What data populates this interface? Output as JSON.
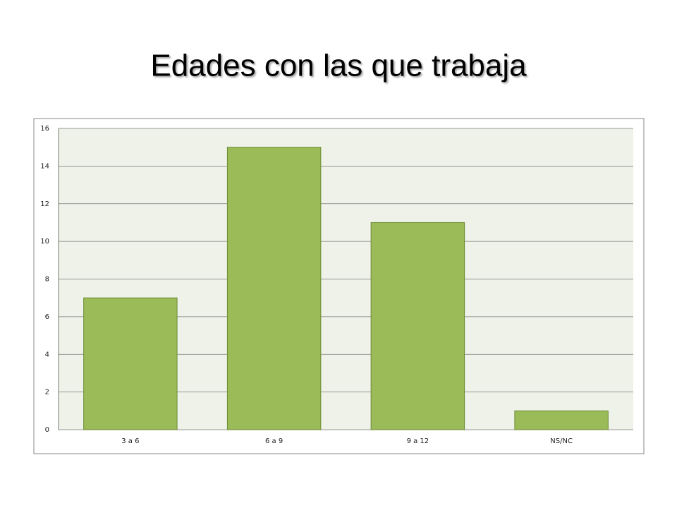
{
  "chart_data": {
    "type": "bar",
    "title": "Edades con las que trabaja",
    "categories": [
      "3 a 6",
      "6 a 9",
      "9 a 12",
      "NS/NC"
    ],
    "values": [
      7,
      15,
      11,
      1
    ],
    "color": "#9bbb59",
    "ylim": [
      0,
      16
    ],
    "yticks": [
      0,
      2,
      4,
      6,
      8,
      10,
      12,
      14,
      16
    ],
    "grid": true
  }
}
